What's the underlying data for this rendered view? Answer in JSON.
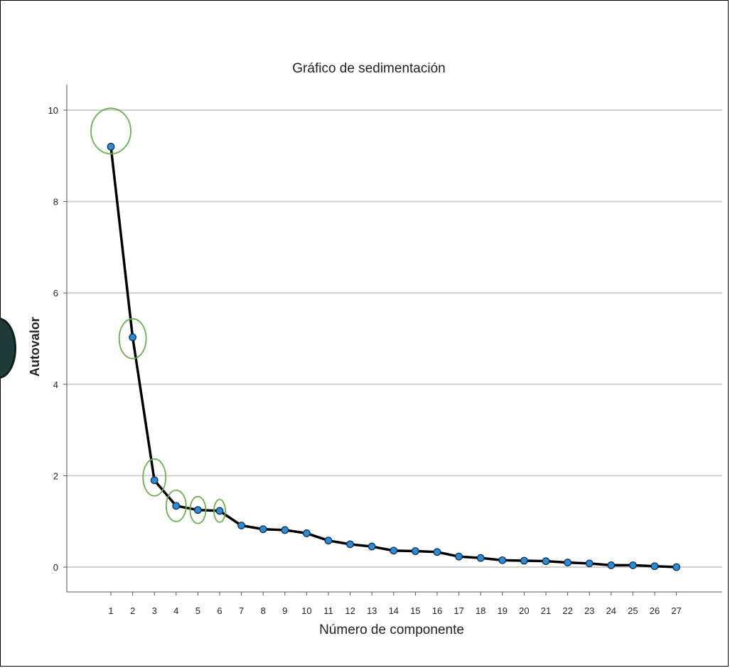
{
  "chart_data": {
    "type": "line",
    "title": "Gráfico de sedimentación",
    "xlabel": "Número de componente",
    "ylabel": "Autovalor",
    "x": [
      1,
      2,
      3,
      4,
      5,
      6,
      7,
      8,
      9,
      10,
      11,
      12,
      13,
      14,
      15,
      16,
      17,
      18,
      19,
      20,
      21,
      22,
      23,
      24,
      25,
      26,
      27
    ],
    "y": [
      9.2,
      5.03,
      1.9,
      1.34,
      1.25,
      1.23,
      0.91,
      0.83,
      0.81,
      0.74,
      0.58,
      0.5,
      0.45,
      0.36,
      0.35,
      0.33,
      0.23,
      0.2,
      0.15,
      0.14,
      0.13,
      0.1,
      0.08,
      0.04,
      0.04,
      0.02,
      0.0
    ],
    "ylim": [
      -0.5,
      10.5
    ],
    "yticks": [
      0,
      2,
      4,
      6,
      8,
      10
    ],
    "highlighted": [
      1,
      2,
      3,
      4,
      5,
      6
    ],
    "grid": "horizontal",
    "colors": {
      "line": "#000000",
      "marker": "#2a8bd6",
      "marker_edge": "#0b2a45",
      "highlight": "#6ab04c",
      "grid": "#d0d0d0"
    }
  }
}
